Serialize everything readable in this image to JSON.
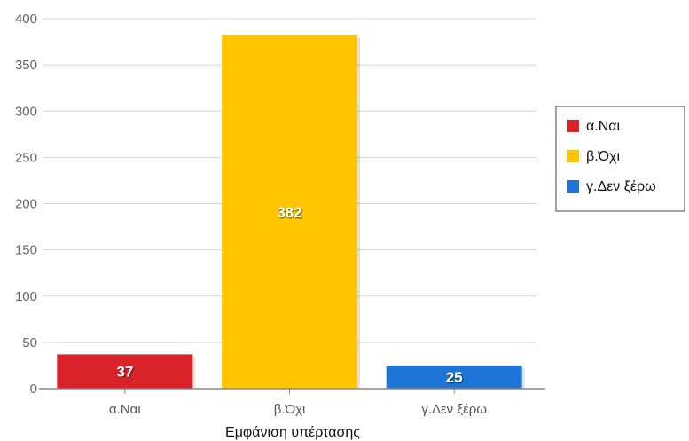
{
  "chart_data": {
    "type": "bar",
    "title": "",
    "xlabel": "Εμφάνιση υπέρτασης",
    "ylabel": "",
    "ylim": [
      0,
      400
    ],
    "yticks": [
      0,
      50,
      100,
      150,
      200,
      250,
      300,
      350,
      400
    ],
    "categories": [
      "α.Ναι",
      "β.Όχι",
      "γ.Δεν ξέρω"
    ],
    "values": [
      37,
      382,
      25
    ],
    "colors": [
      "#d9222a",
      "#ffc600",
      "#1f75d6"
    ],
    "grid": true,
    "legend": {
      "placement": "right",
      "items": [
        "α.Ναι",
        "β.Όχι",
        "γ.Δεν ξέρω"
      ]
    },
    "data_labels": true
  }
}
